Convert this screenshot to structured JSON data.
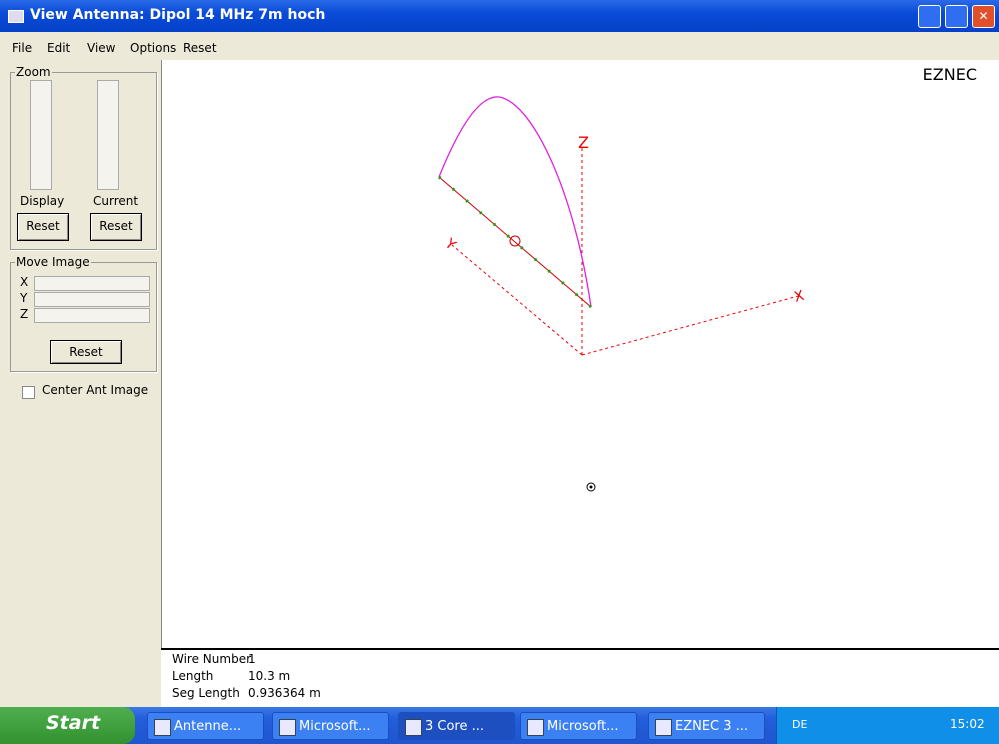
{
  "window": {
    "title": "View Antenna: Dipol 14 MHz 7m hoch"
  },
  "menu": [
    "File",
    "Edit",
    "View",
    "Options",
    "Reset"
  ],
  "zoom": {
    "title": "Zoom",
    "labels": [
      "Display",
      "Current"
    ],
    "buttons": [
      "Reset",
      "Reset"
    ]
  },
  "move_image": {
    "title": "Move Image",
    "axes": [
      "X",
      "Y",
      "Z"
    ],
    "button": "Reset"
  },
  "checkbox": "Center Ant Image",
  "view": {
    "brand": "EZNEC",
    "axes": {
      "z": "Z",
      "y": "Y",
      "x": "X"
    }
  },
  "info": {
    "rows": [
      [
        "Wire Number",
        "1"
      ],
      [
        "Length",
        "10.3 m"
      ],
      [
        "Seg Length",
        "0.936364 m"
      ]
    ]
  },
  "taskbar": {
    "start": "Start",
    "items": [
      "Antenne...",
      "Microsoft...",
      "3 Core ...",
      "Microsoft...",
      "EZNEC 3 ..."
    ],
    "language": "DE",
    "clock": "15:02"
  }
}
